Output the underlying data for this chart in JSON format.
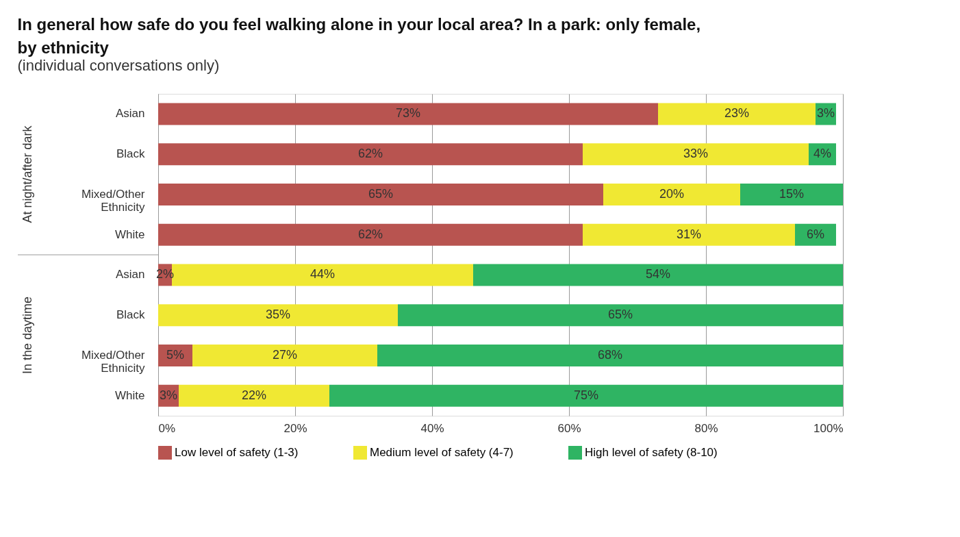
{
  "chart_data": {
    "type": "bar",
    "orientation": "horizontal",
    "stacked": true,
    "title": "In general how safe do you feel walking alone in your local area? In a park: only female, by ethnicity",
    "subtitle": "(individual conversations only)",
    "categories": [
      "Asian",
      "Black",
      "Mixed/Other Ethnicity",
      "White",
      "Asian",
      "Black",
      "Mixed/Other Ethnicity",
      "White"
    ],
    "series": [
      {
        "name": "Low level of safety (1-3)",
        "color": "#b85450",
        "values": [
          73,
          62,
          65,
          62,
          2,
          0,
          5,
          3
        ],
        "value_labels": [
          "73%",
          "62%",
          "65%",
          "62%",
          "2%",
          null,
          "5%",
          "3%"
        ]
      },
      {
        "name": "Medium level of safety (4-7)",
        "color": "#f0e833",
        "values": [
          23,
          33,
          20,
          31,
          44,
          35,
          27,
          22
        ],
        "value_labels": [
          "23%",
          "33%",
          "20%",
          "31%",
          "44%",
          "35%",
          "27%",
          "22%"
        ]
      },
      {
        "name": "High level of safety (8-10)",
        "color": "#2fb463",
        "values": [
          3,
          4,
          15,
          6,
          54,
          65,
          68,
          75
        ],
        "value_labels": [
          "3%",
          "4%",
          "15%",
          "6%",
          "54%",
          "65%",
          "68%",
          "75%"
        ]
      }
    ],
    "annotations": [
      "At night/after dark",
      "In the daytime"
    ],
    "xlim": [
      0,
      100
    ],
    "xticks": [
      {
        "value": 0,
        "label": "0%"
      },
      {
        "value": 20,
        "label": "20%"
      },
      {
        "value": 40,
        "label": "40%"
      },
      {
        "value": 60,
        "label": "60%"
      },
      {
        "value": 80,
        "label": "80%"
      },
      {
        "value": 100,
        "label": "100%"
      }
    ],
    "grid": "x",
    "legend": "bottom"
  }
}
